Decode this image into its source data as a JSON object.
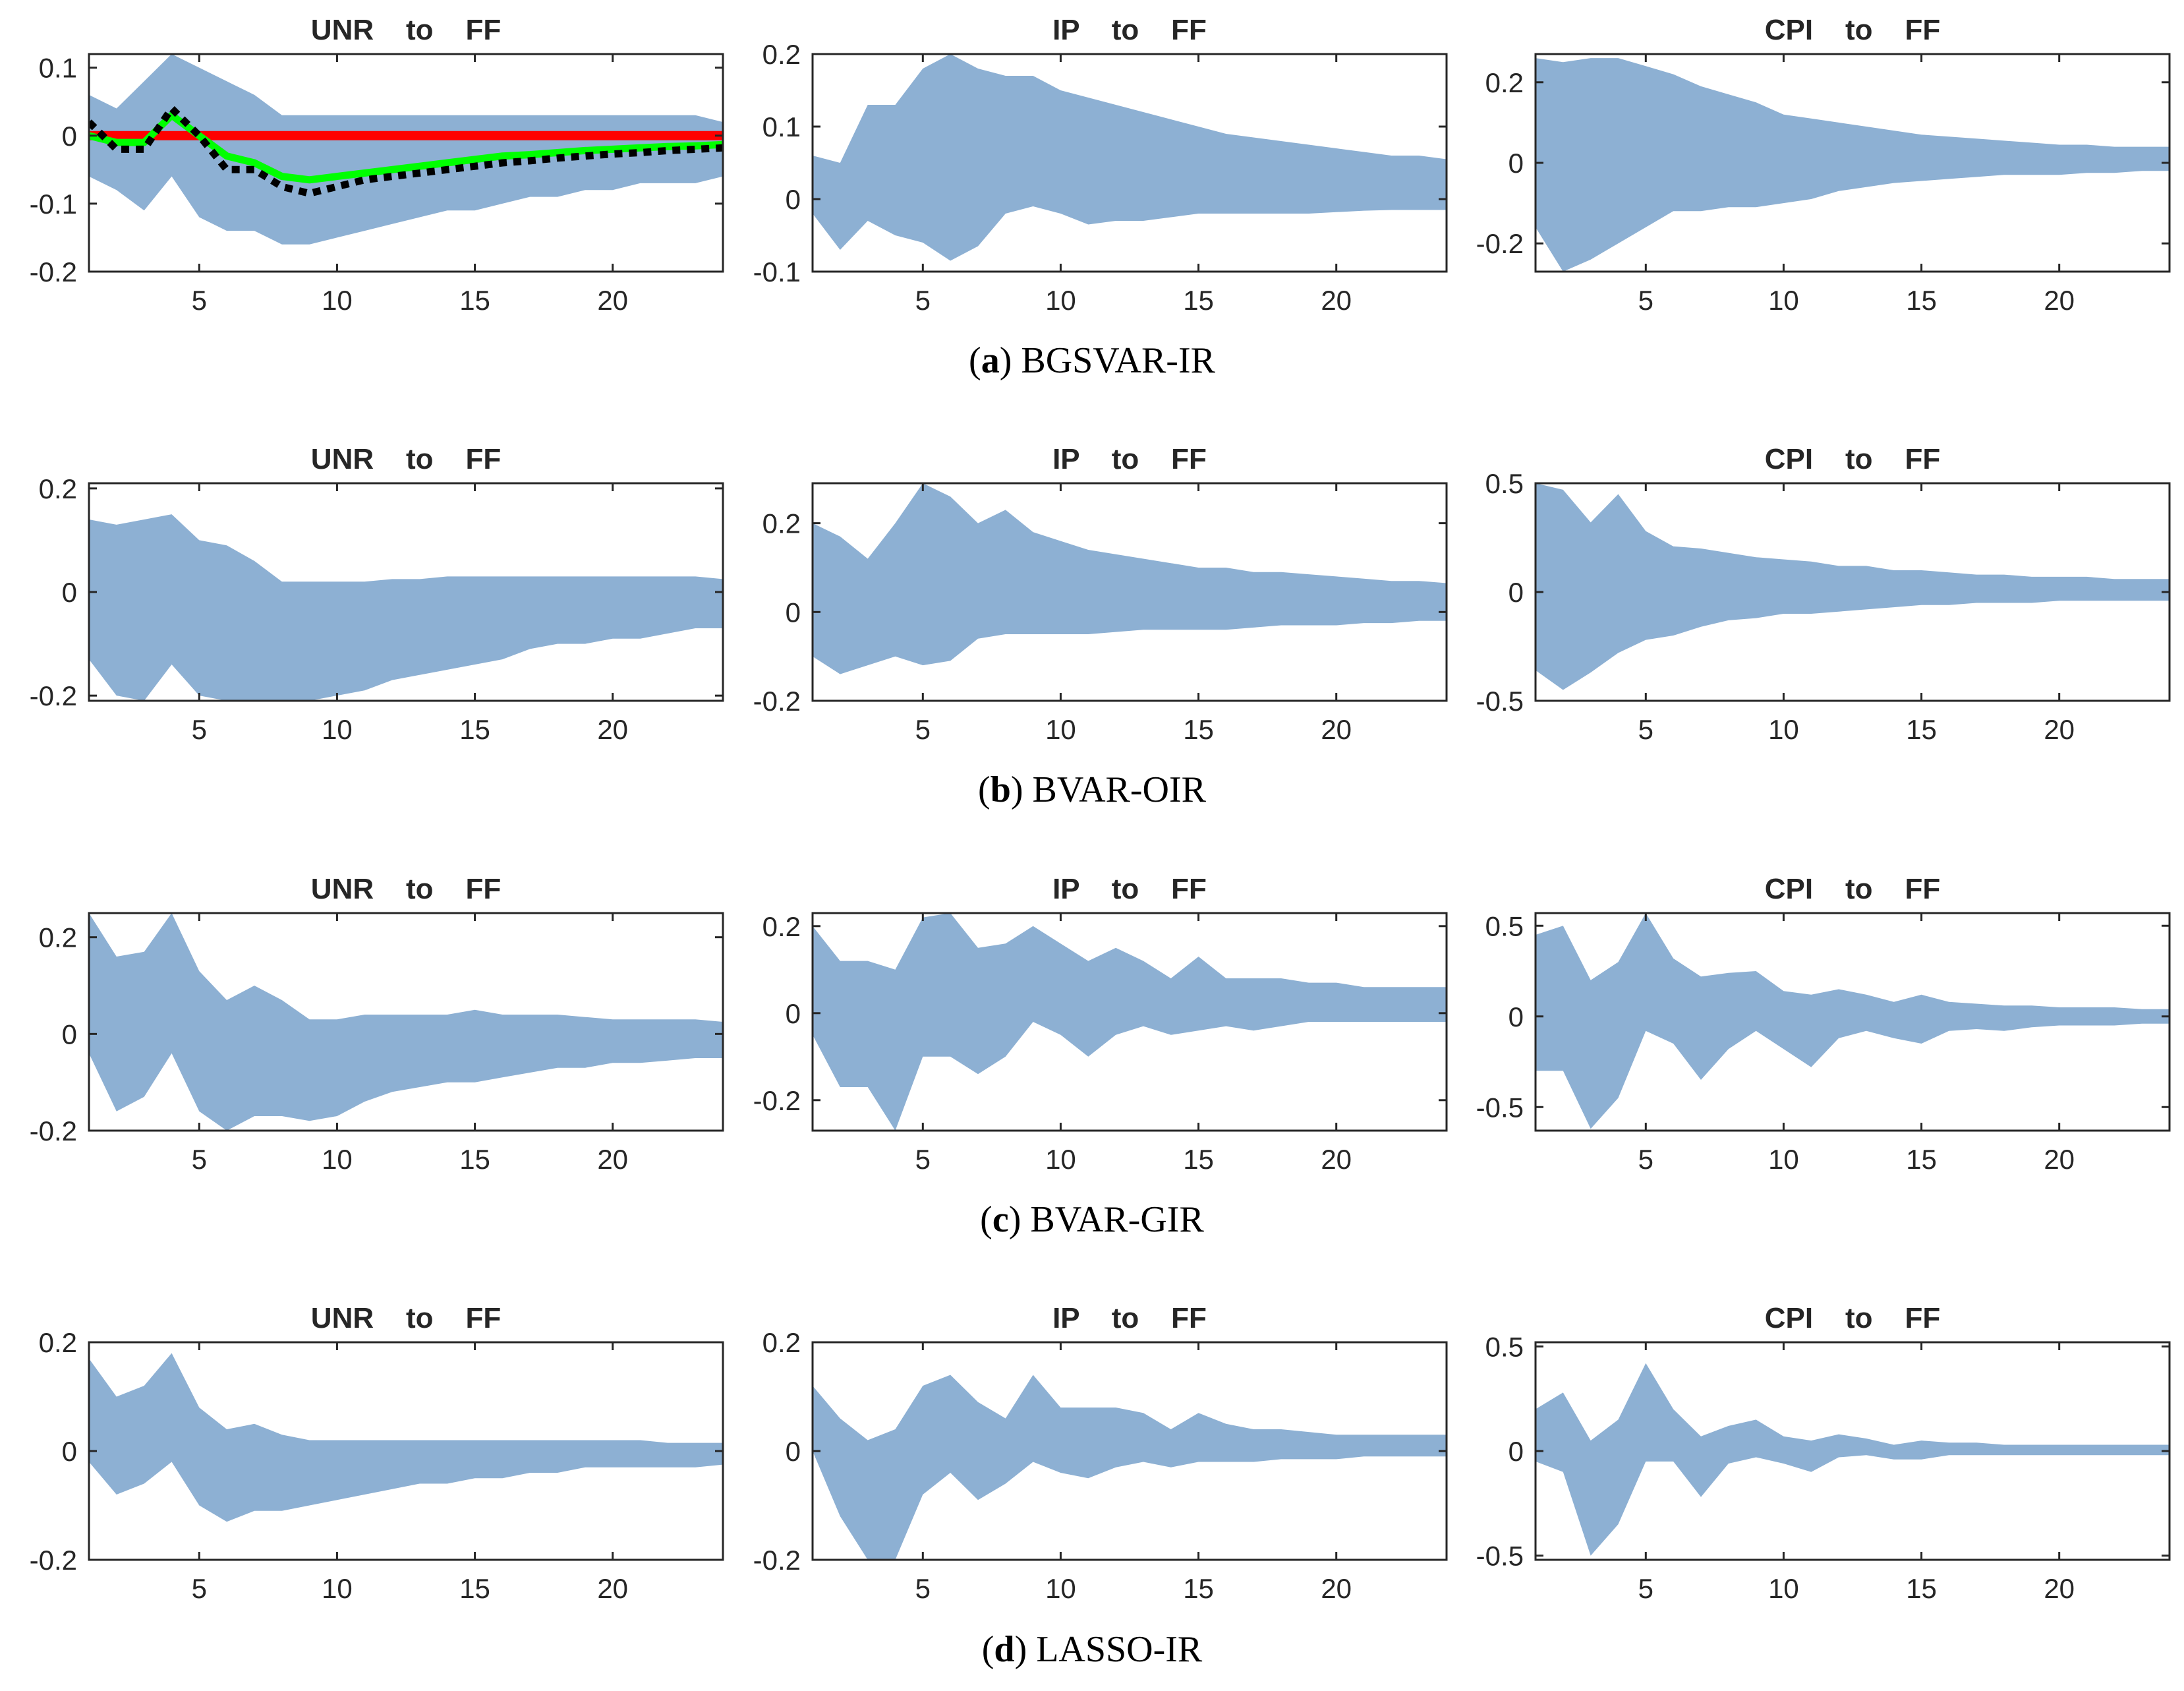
{
  "figure": {
    "colors": {
      "band": "#8db0d3",
      "zero_line": "#ff0000",
      "green_line": "#00ff00",
      "dotted_line": "#000000",
      "axis": "#262626"
    },
    "rows": [
      {
        "letter": "a",
        "caption": "BGSVAR-IR"
      },
      {
        "letter": "b",
        "caption": "BVAR-OIR"
      },
      {
        "letter": "c",
        "caption": "BVAR-GIR"
      },
      {
        "letter": "d",
        "caption": "LASSO-IR"
      }
    ]
  },
  "chart_data": [
    {
      "id": "a-unr",
      "type": "line",
      "title": "UNR    to    FF",
      "xlim": [
        1,
        24
      ],
      "xticks": [
        5,
        10,
        15,
        20
      ],
      "ylim": [
        -0.2,
        0.12
      ],
      "yticks": [
        -0.2,
        -0.1,
        0,
        0.1
      ],
      "yticklabels": [
        "-0.2",
        "-0.1",
        "0",
        "0.1"
      ],
      "x": [
        1,
        2,
        3,
        4,
        5,
        6,
        7,
        8,
        9,
        10,
        11,
        12,
        13,
        14,
        15,
        16,
        17,
        18,
        19,
        20,
        21,
        22,
        23,
        24
      ],
      "band_upper": [
        0.06,
        0.04,
        0.08,
        0.12,
        0.1,
        0.08,
        0.06,
        0.03,
        0.03,
        0.03,
        0.03,
        0.03,
        0.03,
        0.03,
        0.03,
        0.03,
        0.03,
        0.03,
        0.03,
        0.03,
        0.03,
        0.03,
        0.03,
        0.02
      ],
      "band_lower": [
        -0.06,
        -0.08,
        -0.11,
        -0.06,
        -0.12,
        -0.14,
        -0.14,
        -0.16,
        -0.16,
        -0.15,
        -0.14,
        -0.13,
        -0.12,
        -0.11,
        -0.11,
        -0.1,
        -0.09,
        -0.09,
        -0.08,
        -0.08,
        -0.07,
        -0.07,
        -0.07,
        -0.06
      ],
      "series": [
        {
          "name": "zero",
          "values": [
            0,
            0,
            0,
            0,
            0,
            0,
            0,
            0,
            0,
            0,
            0,
            0,
            0,
            0,
            0,
            0,
            0,
            0,
            0,
            0,
            0,
            0,
            0,
            0
          ]
        },
        {
          "name": "green",
          "values": [
            0.0,
            -0.01,
            -0.01,
            0.03,
            0.0,
            -0.03,
            -0.04,
            -0.06,
            -0.065,
            -0.06,
            -0.055,
            -0.05,
            -0.045,
            -0.04,
            -0.035,
            -0.03,
            -0.028,
            -0.025,
            -0.022,
            -0.02,
            -0.018,
            -0.016,
            -0.015,
            -0.013
          ]
        },
        {
          "name": "dotted",
          "values": [
            0.02,
            -0.02,
            -0.02,
            0.04,
            0.0,
            -0.05,
            -0.05,
            -0.075,
            -0.085,
            -0.075,
            -0.065,
            -0.06,
            -0.055,
            -0.05,
            -0.045,
            -0.04,
            -0.037,
            -0.033,
            -0.03,
            -0.027,
            -0.025,
            -0.022,
            -0.02,
            -0.018
          ]
        }
      ]
    },
    {
      "id": "a-ip",
      "type": "line",
      "title": "IP    to    FF",
      "xlim": [
        1,
        24
      ],
      "xticks": [
        5,
        10,
        15,
        20
      ],
      "ylim": [
        -0.1,
        0.2
      ],
      "yticks": [
        -0.1,
        0,
        0.1,
        0.2
      ],
      "yticklabels": [
        "-0.1",
        "0",
        "0.1",
        "0.2"
      ],
      "x": [
        1,
        2,
        3,
        4,
        5,
        6,
        7,
        8,
        9,
        10,
        11,
        12,
        13,
        14,
        15,
        16,
        17,
        18,
        19,
        20,
        21,
        22,
        23,
        24
      ],
      "band_upper": [
        0.06,
        0.05,
        0.13,
        0.13,
        0.18,
        0.2,
        0.18,
        0.17,
        0.17,
        0.15,
        0.14,
        0.13,
        0.12,
        0.11,
        0.1,
        0.09,
        0.085,
        0.08,
        0.075,
        0.07,
        0.065,
        0.06,
        0.06,
        0.055
      ],
      "band_lower": [
        -0.02,
        -0.07,
        -0.03,
        -0.05,
        -0.06,
        -0.085,
        -0.065,
        -0.02,
        -0.01,
        -0.02,
        -0.035,
        -0.03,
        -0.03,
        -0.025,
        -0.02,
        -0.02,
        -0.02,
        -0.02,
        -0.02,
        -0.018,
        -0.016,
        -0.015,
        -0.015,
        -0.015
      ]
    },
    {
      "id": "a-cpi",
      "type": "line",
      "title": "CPI    to    FF",
      "xlim": [
        1,
        24
      ],
      "xticks": [
        5,
        10,
        15,
        20
      ],
      "ylim": [
        -0.27,
        0.27
      ],
      "yticks": [
        -0.2,
        0,
        0.2
      ],
      "yticklabels": [
        "-0.2",
        "0",
        "0.2"
      ],
      "x": [
        1,
        2,
        3,
        4,
        5,
        6,
        7,
        8,
        9,
        10,
        11,
        12,
        13,
        14,
        15,
        16,
        17,
        18,
        19,
        20,
        21,
        22,
        23,
        24
      ],
      "band_upper": [
        0.26,
        0.25,
        0.26,
        0.26,
        0.24,
        0.22,
        0.19,
        0.17,
        0.15,
        0.12,
        0.11,
        0.1,
        0.09,
        0.08,
        0.07,
        0.065,
        0.06,
        0.055,
        0.05,
        0.045,
        0.045,
        0.04,
        0.04,
        0.04
      ],
      "band_lower": [
        -0.16,
        -0.27,
        -0.24,
        -0.2,
        -0.16,
        -0.12,
        -0.12,
        -0.11,
        -0.11,
        -0.1,
        -0.09,
        -0.07,
        -0.06,
        -0.05,
        -0.045,
        -0.04,
        -0.035,
        -0.03,
        -0.03,
        -0.03,
        -0.025,
        -0.025,
        -0.02,
        -0.02
      ]
    },
    {
      "id": "b-unr",
      "type": "line",
      "title": "UNR    to    FF",
      "xlim": [
        1,
        24
      ],
      "xticks": [
        5,
        10,
        15,
        20
      ],
      "ylim": [
        -0.21,
        0.21
      ],
      "yticks": [
        -0.2,
        0,
        0.2
      ],
      "yticklabels": [
        "-0.2",
        "0",
        "0.2"
      ],
      "x": [
        1,
        2,
        3,
        4,
        5,
        6,
        7,
        8,
        9,
        10,
        11,
        12,
        13,
        14,
        15,
        16,
        17,
        18,
        19,
        20,
        21,
        22,
        23,
        24
      ],
      "band_upper": [
        0.14,
        0.13,
        0.14,
        0.15,
        0.1,
        0.09,
        0.06,
        0.02,
        0.02,
        0.02,
        0.02,
        0.025,
        0.025,
        0.03,
        0.03,
        0.03,
        0.03,
        0.03,
        0.03,
        0.03,
        0.03,
        0.03,
        0.03,
        0.025
      ],
      "band_lower": [
        -0.13,
        -0.2,
        -0.21,
        -0.14,
        -0.2,
        -0.21,
        -0.21,
        -0.21,
        -0.21,
        -0.2,
        -0.19,
        -0.17,
        -0.16,
        -0.15,
        -0.14,
        -0.13,
        -0.11,
        -0.1,
        -0.1,
        -0.09,
        -0.09,
        -0.08,
        -0.07,
        -0.07
      ]
    },
    {
      "id": "b-ip",
      "type": "line",
      "title": "IP    to    FF",
      "xlim": [
        1,
        24
      ],
      "xticks": [
        5,
        10,
        15,
        20
      ],
      "ylim": [
        -0.2,
        0.29
      ],
      "yticks": [
        -0.2,
        0,
        0.2
      ],
      "yticklabels": [
        "-0.2",
        "0",
        "0.2"
      ],
      "x": [
        1,
        2,
        3,
        4,
        5,
        6,
        7,
        8,
        9,
        10,
        11,
        12,
        13,
        14,
        15,
        16,
        17,
        18,
        19,
        20,
        21,
        22,
        23,
        24
      ],
      "band_upper": [
        0.2,
        0.17,
        0.12,
        0.2,
        0.29,
        0.26,
        0.2,
        0.23,
        0.18,
        0.16,
        0.14,
        0.13,
        0.12,
        0.11,
        0.1,
        0.1,
        0.09,
        0.09,
        0.085,
        0.08,
        0.075,
        0.07,
        0.07,
        0.065
      ],
      "band_lower": [
        -0.1,
        -0.14,
        -0.12,
        -0.1,
        -0.12,
        -0.11,
        -0.06,
        -0.05,
        -0.05,
        -0.05,
        -0.05,
        -0.045,
        -0.04,
        -0.04,
        -0.04,
        -0.04,
        -0.035,
        -0.03,
        -0.03,
        -0.03,
        -0.025,
        -0.025,
        -0.02,
        -0.02
      ]
    },
    {
      "id": "b-cpi",
      "type": "line",
      "title": "CPI    to    FF",
      "xlim": [
        1,
        24
      ],
      "xticks": [
        5,
        10,
        15,
        20
      ],
      "ylim": [
        -0.5,
        0.5
      ],
      "yticks": [
        -0.5,
        0,
        0.5
      ],
      "yticklabels": [
        "-0.5",
        "0",
        "0.5"
      ],
      "x": [
        1,
        2,
        3,
        4,
        5,
        6,
        7,
        8,
        9,
        10,
        11,
        12,
        13,
        14,
        15,
        16,
        17,
        18,
        19,
        20,
        21,
        22,
        23,
        24
      ],
      "band_upper": [
        0.5,
        0.47,
        0.32,
        0.45,
        0.28,
        0.21,
        0.2,
        0.18,
        0.16,
        0.15,
        0.14,
        0.12,
        0.12,
        0.1,
        0.1,
        0.09,
        0.08,
        0.08,
        0.07,
        0.07,
        0.07,
        0.06,
        0.06,
        0.06
      ],
      "band_lower": [
        -0.36,
        -0.45,
        -0.37,
        -0.28,
        -0.22,
        -0.2,
        -0.16,
        -0.13,
        -0.12,
        -0.1,
        -0.1,
        -0.09,
        -0.08,
        -0.07,
        -0.06,
        -0.06,
        -0.05,
        -0.05,
        -0.05,
        -0.04,
        -0.04,
        -0.04,
        -0.04,
        -0.04
      ]
    },
    {
      "id": "c-unr",
      "type": "line",
      "title": "UNR    to    FF",
      "xlim": [
        1,
        24
      ],
      "xticks": [
        5,
        10,
        15,
        20
      ],
      "ylim": [
        -0.2,
        0.25
      ],
      "yticks": [
        -0.2,
        0,
        0.2
      ],
      "yticklabels": [
        "-0.2",
        "0",
        "0.2"
      ],
      "x": [
        1,
        2,
        3,
        4,
        5,
        6,
        7,
        8,
        9,
        10,
        11,
        12,
        13,
        14,
        15,
        16,
        17,
        18,
        19,
        20,
        21,
        22,
        23,
        24
      ],
      "band_upper": [
        0.25,
        0.16,
        0.17,
        0.25,
        0.13,
        0.07,
        0.1,
        0.07,
        0.03,
        0.03,
        0.04,
        0.04,
        0.04,
        0.04,
        0.05,
        0.04,
        0.04,
        0.04,
        0.035,
        0.03,
        0.03,
        0.03,
        0.03,
        0.025
      ],
      "band_lower": [
        -0.04,
        -0.16,
        -0.13,
        -0.04,
        -0.16,
        -0.2,
        -0.17,
        -0.17,
        -0.18,
        -0.17,
        -0.14,
        -0.12,
        -0.11,
        -0.1,
        -0.1,
        -0.09,
        -0.08,
        -0.07,
        -0.07,
        -0.06,
        -0.06,
        -0.055,
        -0.05,
        -0.05
      ]
    },
    {
      "id": "c-ip",
      "type": "line",
      "title": "IP    to    FF",
      "xlim": [
        1,
        24
      ],
      "xticks": [
        5,
        10,
        15,
        20
      ],
      "ylim": [
        -0.27,
        0.23
      ],
      "yticks": [
        -0.2,
        0,
        0.2
      ],
      "yticklabels": [
        "-0.2",
        "0",
        "0.2"
      ],
      "x": [
        1,
        2,
        3,
        4,
        5,
        6,
        7,
        8,
        9,
        10,
        11,
        12,
        13,
        14,
        15,
        16,
        17,
        18,
        19,
        20,
        21,
        22,
        23,
        24
      ],
      "band_upper": [
        0.2,
        0.12,
        0.12,
        0.1,
        0.22,
        0.23,
        0.15,
        0.16,
        0.2,
        0.16,
        0.12,
        0.15,
        0.12,
        0.08,
        0.13,
        0.08,
        0.08,
        0.08,
        0.07,
        0.07,
        0.06,
        0.06,
        0.06,
        0.06
      ],
      "band_lower": [
        -0.05,
        -0.17,
        -0.17,
        -0.27,
        -0.1,
        -0.1,
        -0.14,
        -0.1,
        -0.02,
        -0.05,
        -0.1,
        -0.05,
        -0.03,
        -0.05,
        -0.04,
        -0.03,
        -0.04,
        -0.03,
        -0.02,
        -0.02,
        -0.02,
        -0.02,
        -0.02,
        -0.02
      ]
    },
    {
      "id": "c-cpi",
      "type": "line",
      "title": "CPI    to    FF",
      "xlim": [
        1,
        24
      ],
      "xticks": [
        5,
        10,
        15,
        20
      ],
      "ylim": [
        -0.63,
        0.57
      ],
      "yticks": [
        -0.5,
        0,
        0.5
      ],
      "yticklabels": [
        "-0.5",
        "0",
        "0.5"
      ],
      "x": [
        1,
        2,
        3,
        4,
        5,
        6,
        7,
        8,
        9,
        10,
        11,
        12,
        13,
        14,
        15,
        16,
        17,
        18,
        19,
        20,
        21,
        22,
        23,
        24
      ],
      "band_upper": [
        0.45,
        0.5,
        0.2,
        0.3,
        0.57,
        0.32,
        0.22,
        0.24,
        0.25,
        0.14,
        0.12,
        0.15,
        0.12,
        0.08,
        0.12,
        0.08,
        0.07,
        0.06,
        0.06,
        0.05,
        0.05,
        0.05,
        0.04,
        0.04
      ],
      "band_lower": [
        -0.3,
        -0.3,
        -0.62,
        -0.45,
        -0.08,
        -0.15,
        -0.35,
        -0.18,
        -0.08,
        -0.18,
        -0.28,
        -0.12,
        -0.08,
        -0.12,
        -0.15,
        -0.08,
        -0.07,
        -0.08,
        -0.06,
        -0.05,
        -0.05,
        -0.05,
        -0.04,
        -0.04
      ]
    },
    {
      "id": "d-unr",
      "type": "line",
      "title": "UNR    to    FF",
      "xlim": [
        1,
        24
      ],
      "xticks": [
        5,
        10,
        15,
        20
      ],
      "ylim": [
        -0.2,
        0.2
      ],
      "yticks": [
        -0.2,
        0,
        0.2
      ],
      "yticklabels": [
        "-0.2",
        "0",
        "0.2"
      ],
      "x": [
        1,
        2,
        3,
        4,
        5,
        6,
        7,
        8,
        9,
        10,
        11,
        12,
        13,
        14,
        15,
        16,
        17,
        18,
        19,
        20,
        21,
        22,
        23,
        24
      ],
      "band_upper": [
        0.17,
        0.1,
        0.12,
        0.18,
        0.08,
        0.04,
        0.05,
        0.03,
        0.02,
        0.02,
        0.02,
        0.02,
        0.02,
        0.02,
        0.02,
        0.02,
        0.02,
        0.02,
        0.02,
        0.02,
        0.02,
        0.015,
        0.015,
        0.015
      ],
      "band_lower": [
        -0.02,
        -0.08,
        -0.06,
        -0.02,
        -0.1,
        -0.13,
        -0.11,
        -0.11,
        -0.1,
        -0.09,
        -0.08,
        -0.07,
        -0.06,
        -0.06,
        -0.05,
        -0.05,
        -0.04,
        -0.04,
        -0.03,
        -0.03,
        -0.03,
        -0.03,
        -0.03,
        -0.025
      ]
    },
    {
      "id": "d-ip",
      "type": "line",
      "title": "IP    to    FF",
      "xlim": [
        1,
        24
      ],
      "xticks": [
        5,
        10,
        15,
        20
      ],
      "ylim": [
        -0.2,
        0.2
      ],
      "yticks": [
        -0.2,
        0,
        0.2
      ],
      "yticklabels": [
        "-0.2",
        "0",
        "0.2"
      ],
      "x": [
        1,
        2,
        3,
        4,
        5,
        6,
        7,
        8,
        9,
        10,
        11,
        12,
        13,
        14,
        15,
        16,
        17,
        18,
        19,
        20,
        21,
        22,
        23,
        24
      ],
      "band_upper": [
        0.12,
        0.06,
        0.02,
        0.04,
        0.12,
        0.14,
        0.09,
        0.06,
        0.14,
        0.08,
        0.08,
        0.08,
        0.07,
        0.04,
        0.07,
        0.05,
        0.04,
        0.04,
        0.035,
        0.03,
        0.03,
        0.03,
        0.03,
        0.03
      ],
      "band_lower": [
        0.0,
        -0.12,
        -0.2,
        -0.2,
        -0.08,
        -0.04,
        -0.09,
        -0.06,
        -0.02,
        -0.04,
        -0.05,
        -0.03,
        -0.02,
        -0.03,
        -0.02,
        -0.02,
        -0.02,
        -0.015,
        -0.015,
        -0.015,
        -0.01,
        -0.01,
        -0.01,
        -0.01
      ]
    },
    {
      "id": "d-cpi",
      "type": "line",
      "title": "CPI    to    FF",
      "xlim": [
        1,
        24
      ],
      "xticks": [
        5,
        10,
        15,
        20
      ],
      "ylim": [
        -0.52,
        0.52
      ],
      "yticks": [
        -0.5,
        0,
        0.5
      ],
      "yticklabels": [
        "-0.5",
        "0",
        "0.5"
      ],
      "x": [
        1,
        2,
        3,
        4,
        5,
        6,
        7,
        8,
        9,
        10,
        11,
        12,
        13,
        14,
        15,
        16,
        17,
        18,
        19,
        20,
        21,
        22,
        23,
        24
      ],
      "band_upper": [
        0.2,
        0.28,
        0.05,
        0.15,
        0.42,
        0.2,
        0.07,
        0.12,
        0.15,
        0.07,
        0.05,
        0.08,
        0.06,
        0.03,
        0.05,
        0.04,
        0.04,
        0.03,
        0.03,
        0.03,
        0.03,
        0.03,
        0.03,
        0.03
      ],
      "band_lower": [
        -0.05,
        -0.1,
        -0.5,
        -0.35,
        -0.05,
        -0.05,
        -0.22,
        -0.06,
        -0.03,
        -0.06,
        -0.1,
        -0.03,
        -0.02,
        -0.04,
        -0.04,
        -0.02,
        -0.02,
        -0.02,
        -0.02,
        -0.02,
        -0.02,
        -0.02,
        -0.02,
        -0.02
      ]
    }
  ]
}
